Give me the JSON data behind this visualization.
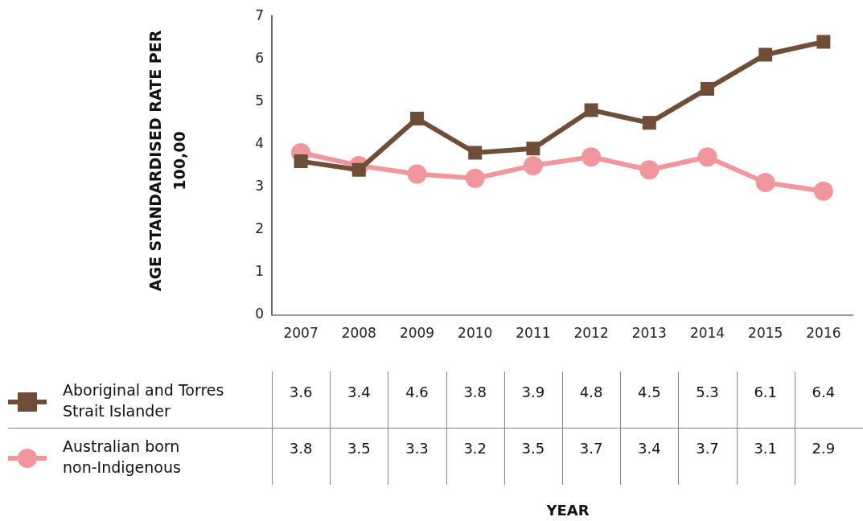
{
  "chart_data": {
    "type": "line",
    "annotations": [
      "YEAR"
    ],
    "ylabel": "AGE STANDARDISED RATE PER 100,00",
    "categories": [
      "2007",
      "2008",
      "2009",
      "2010",
      "2011",
      "2012",
      "2013",
      "2014",
      "2015",
      "2016"
    ],
    "series": [
      {
        "name": "Aboriginal and Torres Strait Islander",
        "color": "#6f4e37",
        "marker": "square",
        "values": [
          3.6,
          3.4,
          4.6,
          3.8,
          3.9,
          4.8,
          4.5,
          5.3,
          6.1,
          6.4
        ]
      },
      {
        "name": "Australian born non-Indigenous",
        "color": "#f0969c",
        "marker": "circle",
        "values": [
          3.8,
          3.5,
          3.3,
          3.2,
          3.5,
          3.7,
          3.4,
          3.7,
          3.1,
          2.9
        ]
      }
    ],
    "ylim": [
      0,
      7
    ],
    "yticks": [
      0,
      1,
      2,
      3,
      4,
      5,
      6,
      7
    ],
    "grid": false,
    "legend": "bottom",
    "data_labels": true
  }
}
